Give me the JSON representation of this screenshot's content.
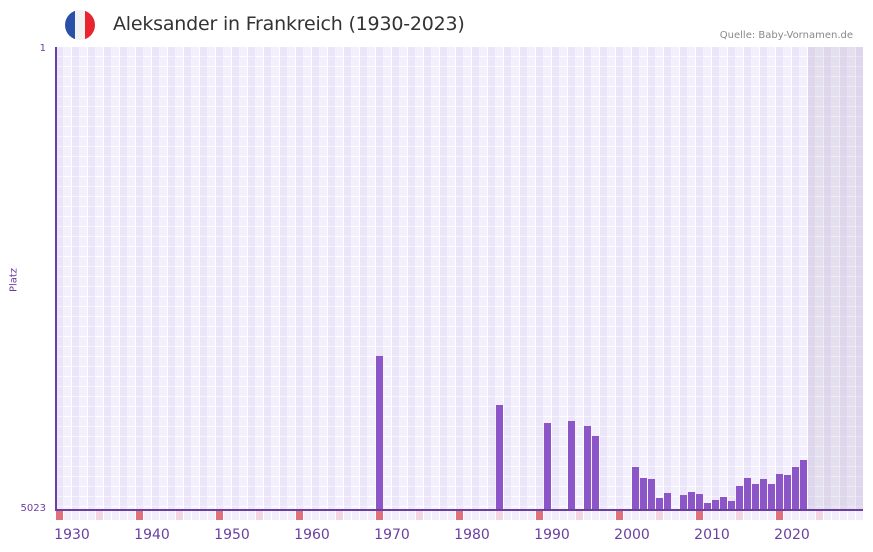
{
  "header": {
    "title": "Aleksander in Frankreich (1930-2023)",
    "source": "Quelle: Baby-Vornamen.de",
    "flag": {
      "colors": [
        "#2a4fa8",
        "#f2f2f2",
        "#e8242e"
      ],
      "icon": "france-flag-icon"
    }
  },
  "axis": {
    "y_title": "Platz",
    "y_top": "1",
    "y_bottom": "5023",
    "x_labels": [
      "1930",
      "1940",
      "1950",
      "1960",
      "1970",
      "1980",
      "1990",
      "2000",
      "2010",
      "2020"
    ]
  },
  "colors": {
    "bar": "#8c55c8",
    "axis": "#6b3fa0",
    "major_tick": "#e0707e",
    "minor_tick": "#f3d6e0"
  },
  "chart_data": {
    "type": "bar",
    "title": "Aleksander in Frankreich (1930-2023)",
    "subtitle": "Quelle: Baby-Vornamen.de",
    "xlabel": "",
    "ylabel": "Platz",
    "ylim": [
      5023,
      1
    ],
    "y_inverted": true,
    "x_range": [
      1930,
      2028
    ],
    "future_shaded_from": 2024,
    "grid": true,
    "legend": null,
    "categories": [
      1970,
      1985,
      1991,
      1994,
      1996,
      1997,
      2002,
      2003,
      2004,
      2005,
      2006,
      2008,
      2009,
      2010,
      2011,
      2012,
      2013,
      2014,
      2015,
      2016,
      2017,
      2018,
      2019,
      2020,
      2021,
      2022,
      2023
    ],
    "values": [
      3353,
      3884,
      4079,
      4058,
      4112,
      4220,
      4557,
      4676,
      4687,
      4893,
      4839,
      4860,
      4828,
      4849,
      4947,
      4915,
      4882,
      4925,
      4763,
      4676,
      4741,
      4687,
      4741,
      4633,
      4643,
      4557,
      4481
    ]
  }
}
